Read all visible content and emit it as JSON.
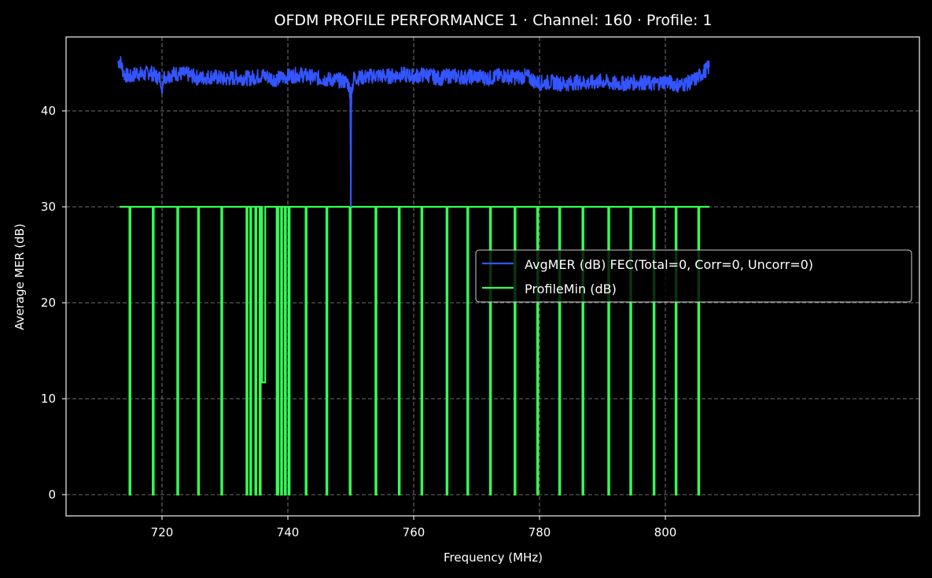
{
  "chart_data": {
    "type": "line",
    "title": "OFDM PROFILE PERFORMANCE 1 · Channel: 160 · Profile: 1",
    "xlabel": "Frequency (MHz)",
    "ylabel": "Average MER (dB)",
    "xlim": [
      708.5,
      811.9
    ],
    "ylim": [
      -2.3,
      47.6
    ],
    "xticks": [
      720,
      740,
      760,
      780,
      800
    ],
    "yticks": [
      0,
      10,
      20,
      30,
      40
    ],
    "grid": true,
    "legend_position": "center right",
    "background": "#000000",
    "series": [
      {
        "name": "AvgMER (dB) FEC(Total=0, Corr=0, Uncorr=0)",
        "color": "#3355ff",
        "description": "Noisy MER trace ~43-44 dB from 713 to 807 MHz, small dip ~41.6 dB at 720 MHz, deep dip to 30 dB at 750 MHz",
        "x": [
          713,
          713.3,
          714,
          715,
          716,
          717,
          718,
          719,
          719.8,
          720,
          720.2,
          722,
          724,
          726,
          728,
          730,
          732,
          734,
          736,
          738,
          740,
          742,
          744,
          746,
          748,
          749.5,
          749.9,
          750,
          750.1,
          750.5,
          752,
          754,
          756,
          758,
          760,
          762,
          764,
          766,
          768,
          770,
          772,
          774,
          776,
          778,
          779.5,
          780,
          782,
          784,
          786,
          788,
          790,
          792,
          794,
          796,
          798,
          800,
          802,
          803,
          804,
          805,
          806,
          807
        ],
        "y": [
          45.0,
          45.3,
          43.8,
          43.5,
          44.0,
          43.7,
          44.1,
          43.6,
          43.4,
          41.6,
          43.5,
          43.9,
          43.8,
          43.4,
          43.6,
          43.3,
          43.5,
          43.4,
          43.7,
          43.3,
          43.6,
          43.8,
          43.5,
          43.3,
          43.2,
          43.0,
          42.0,
          30.0,
          42.0,
          43.4,
          43.5,
          43.7,
          43.6,
          43.8,
          43.6,
          43.8,
          43.4,
          43.7,
          43.5,
          43.6,
          43.4,
          43.7,
          43.5,
          43.6,
          43.0,
          42.9,
          43.0,
          42.8,
          43.0,
          42.9,
          43.1,
          42.8,
          42.9,
          43.0,
          42.8,
          43.1,
          42.7,
          42.8,
          43.0,
          43.4,
          44.0,
          44.6
        ]
      },
      {
        "name": "ProfileMin (dB)",
        "color": "#33ff55",
        "description": "Constant 30 dB from 713 to 807 MHz with narrow drops to 0 dB; one drop to 11.7 dB near 735.8-736.4 MHz",
        "baseline": 30,
        "x_start": 713.25,
        "x_end": 807.0,
        "drops_to_zero_mhz": [
          714.9,
          718.6,
          722.5,
          725.8,
          729.5,
          733.5,
          734.1,
          734.9,
          735.6,
          738.3,
          738.4,
          739.0,
          739.6,
          740.2,
          742.9,
          746.2,
          749.9,
          754.0,
          757.7,
          761.3,
          765.3,
          768.6,
          772.2,
          776.1,
          779.7,
          783.2,
          786.9,
          791.0,
          794.5,
          798.2,
          801.7,
          805.3
        ],
        "partial_drop": {
          "x_start": 735.9,
          "x_end": 736.4,
          "y": 11.7
        }
      }
    ]
  },
  "legend": {
    "items": [
      {
        "label": "AvgMER (dB) FEC(Total=0, Corr=0, Uncorr=0)",
        "color": "#3355ff"
      },
      {
        "label": "ProfileMin (dB)",
        "color": "#33ff55"
      }
    ]
  },
  "axes": {
    "x_tick_labels": [
      "720",
      "740",
      "760",
      "780",
      "800"
    ],
    "y_tick_labels": [
      "0",
      "10",
      "20",
      "30",
      "40"
    ]
  }
}
